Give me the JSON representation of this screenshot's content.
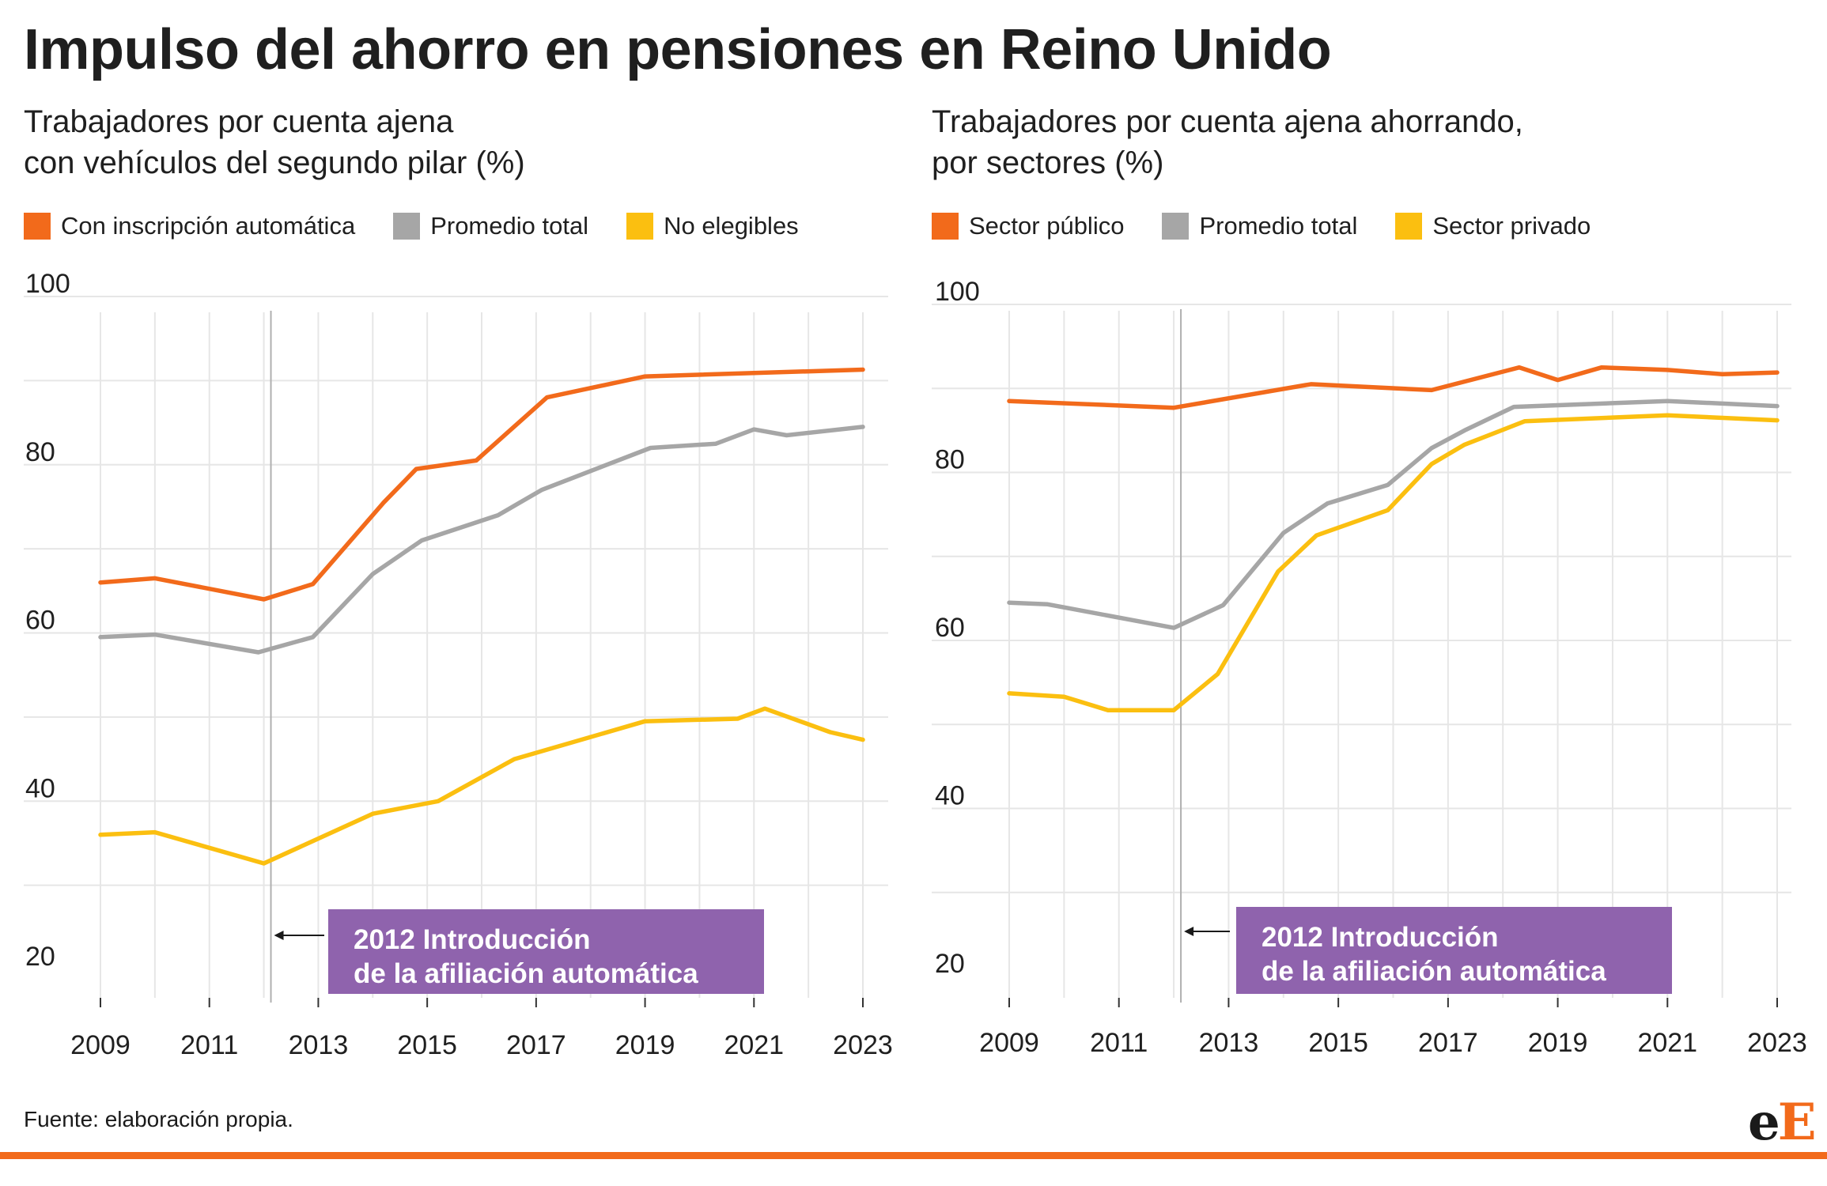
{
  "title": "Impulso del ahorro en pensiones en Reino Unido",
  "source": "Fuente: elaboración propia.",
  "logo": {
    "part1": "e",
    "part2": "E"
  },
  "colors": {
    "orange": "#f26a1b",
    "gray": "#a6a6a6",
    "yellow": "#fbbf10",
    "purple": "#8f63ad",
    "grid": "#e6e6e6",
    "bottom_rule": "#f26a1b"
  },
  "chart_data": [
    {
      "type": "line",
      "subtitle_lines": [
        "Trabajadores por cuenta ajena",
        "con vehículos del segundo pilar (%)"
      ],
      "legend_position": "top-left",
      "xlim": [
        2009,
        2023
      ],
      "ylim": [
        20,
        100
      ],
      "x_ticks": [
        2009,
        2011,
        2013,
        2015,
        2017,
        2019,
        2021,
        2023
      ],
      "y_ticks": [
        20,
        40,
        60,
        80,
        100
      ],
      "grid": true,
      "series": [
        {
          "name": "Con inscripción automática",
          "color": "#f26a1b",
          "x": [
            2009,
            2010,
            2012,
            2012.9,
            2014.2,
            2014.8,
            2015.9,
            2017.2,
            2019,
            2023
          ],
          "y": [
            66,
            66.5,
            64,
            65.8,
            75.5,
            79.5,
            80.5,
            88,
            90.5,
            91.3
          ]
        },
        {
          "name": "Promedio total",
          "color": "#a6a6a6",
          "x": [
            2009,
            2010,
            2011.9,
            2012.9,
            2014,
            2014.9,
            2016.3,
            2017.1,
            2019.1,
            2020.3,
            2021,
            2021.6,
            2023
          ],
          "y": [
            59.5,
            59.8,
            57.7,
            59.5,
            67,
            71,
            74,
            77,
            82,
            82.5,
            84.2,
            83.5,
            84.5
          ]
        },
        {
          "name": "No elegibles",
          "color": "#fbbf10",
          "x": [
            2009,
            2010,
            2012,
            2014,
            2015.2,
            2016.6,
            2019,
            2020.7,
            2021.2,
            2022.4,
            2023
          ],
          "y": [
            36,
            36.3,
            32.6,
            38.5,
            40,
            45,
            49.5,
            49.8,
            51,
            48.2,
            47.3
          ]
        }
      ],
      "annotation": {
        "x": 2012,
        "lines": [
          "2012 Introducción",
          "de la afiliación automática"
        ]
      }
    },
    {
      "type": "line",
      "subtitle_lines": [
        "Trabajadores por cuenta ajena ahorrando,",
        "por sectores (%)"
      ],
      "legend_position": "top-left",
      "xlim": [
        2009,
        2023
      ],
      "ylim": [
        20,
        100
      ],
      "x_ticks": [
        2009,
        2011,
        2013,
        2015,
        2017,
        2019,
        2021,
        2023
      ],
      "y_ticks": [
        20,
        40,
        60,
        80,
        100
      ],
      "grid": true,
      "series": [
        {
          "name": "Sector público",
          "color": "#f26a1b",
          "x": [
            2009,
            2012,
            2014.5,
            2016.7,
            2018.3,
            2019,
            2019.8,
            2021,
            2022,
            2023
          ],
          "y": [
            88.5,
            87.7,
            90.5,
            89.8,
            92.5,
            91,
            92.5,
            92.2,
            91.7,
            91.9
          ]
        },
        {
          "name": "Promedio total",
          "color": "#a6a6a6",
          "x": [
            2009,
            2009.7,
            2012,
            2012.9,
            2014,
            2014.8,
            2015.9,
            2016.7,
            2017.3,
            2018.2,
            2021,
            2023
          ],
          "y": [
            64.5,
            64.3,
            61.5,
            64.2,
            72.8,
            76.3,
            78.5,
            82.9,
            85,
            87.8,
            88.5,
            87.9
          ]
        },
        {
          "name": "Sector privado",
          "color": "#fbbf10",
          "x": [
            2009,
            2010,
            2010.8,
            2012,
            2012.8,
            2013.9,
            2014.6,
            2015.9,
            2016.7,
            2017.3,
            2018.4,
            2021,
            2023
          ],
          "y": [
            53.7,
            53.3,
            51.7,
            51.7,
            56,
            68.2,
            72.5,
            75.5,
            81,
            83.3,
            86.1,
            86.8,
            86.2
          ]
        }
      ],
      "annotation": {
        "x": 2012,
        "lines": [
          "2012 Introducción",
          "de la afiliación automática"
        ]
      }
    }
  ]
}
